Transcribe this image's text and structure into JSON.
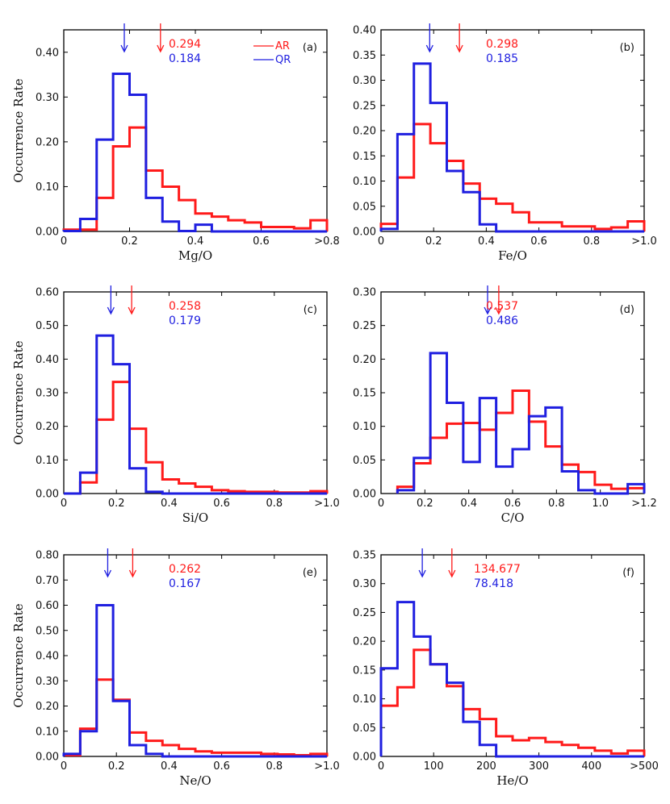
{
  "colors": {
    "AR": "#ff1a1a",
    "QR": "#1f1fe0",
    "axis": "#000000"
  },
  "legend": {
    "AR": "AR",
    "QR": "QR"
  },
  "ylabel": "Occurrence Rate",
  "chart_data": [
    {
      "type": "histogram-step",
      "panel": "(a)",
      "xlabel": "Mg/O",
      "xlim": [
        0,
        0.8
      ],
      "ylim": [
        0,
        0.45
      ],
      "xticks": [
        0,
        0.2,
        0.4,
        0.6,
        0.8
      ],
      "xticklabels": [
        "0",
        "0.2",
        "0.4",
        "0.6",
        ">0.8"
      ],
      "yticks": [
        0,
        0.1,
        0.2,
        0.3,
        0.4
      ],
      "yticklabels": [
        "0.00",
        "0.10",
        "0.20",
        "0.30",
        "0.40"
      ],
      "bin_edges": [
        0,
        0.05,
        0.1,
        0.15,
        0.2,
        0.25,
        0.3,
        0.35,
        0.4,
        0.45,
        0.5,
        0.55,
        0.6,
        0.65,
        0.7,
        0.75,
        0.8
      ],
      "means": {
        "AR": "0.294",
        "QR": "0.184"
      },
      "mean_values": {
        "AR": 0.294,
        "QR": 0.184
      },
      "show_legend": true,
      "series": [
        {
          "name": "AR",
          "values": [
            0.004,
            0.004,
            0.075,
            0.19,
            0.232,
            0.136,
            0.1,
            0.07,
            0.04,
            0.033,
            0.025,
            0.02,
            0.01,
            0.01,
            0.007,
            0.025
          ]
        },
        {
          "name": "QR",
          "values": [
            0.001,
            0.028,
            0.205,
            0.352,
            0.305,
            0.075,
            0.022,
            0.001,
            0.015,
            0.0,
            0.0,
            0.0,
            0.0,
            0.0,
            0.0,
            0.0
          ]
        }
      ]
    },
    {
      "type": "histogram-step",
      "panel": "(b)",
      "xlabel": "Fe/O",
      "xlim": [
        0,
        1.0
      ],
      "ylim": [
        0,
        0.4
      ],
      "xticks": [
        0,
        0.2,
        0.4,
        0.6,
        0.8,
        1.0
      ],
      "xticklabels": [
        "0",
        "0.2",
        "0.4",
        "0.6",
        "0.8",
        ">1.0"
      ],
      "yticks": [
        0,
        0.05,
        0.1,
        0.15,
        0.2,
        0.25,
        0.3,
        0.35,
        0.4
      ],
      "yticklabels": [
        "0.00",
        "0.05",
        "0.10",
        "0.15",
        "0.20",
        "0.25",
        "0.30",
        "0.35",
        "0.40"
      ],
      "bin_edges": [
        0,
        0.0625,
        0.125,
        0.1875,
        0.25,
        0.3125,
        0.375,
        0.4375,
        0.5,
        0.5625,
        0.625,
        0.6875,
        0.75,
        0.8125,
        0.875,
        0.9375,
        1.0
      ],
      "means": {
        "AR": "0.298",
        "QR": "0.185"
      },
      "mean_values": {
        "AR": 0.298,
        "QR": 0.185
      },
      "show_legend": false,
      "series": [
        {
          "name": "AR",
          "values": [
            0.015,
            0.107,
            0.213,
            0.175,
            0.14,
            0.095,
            0.065,
            0.055,
            0.038,
            0.018,
            0.018,
            0.01,
            0.01,
            0.005,
            0.008,
            0.02
          ]
        },
        {
          "name": "QR",
          "values": [
            0.005,
            0.193,
            0.333,
            0.255,
            0.12,
            0.078,
            0.014,
            0.0,
            0.0,
            0.0,
            0.0,
            0.0,
            0.0,
            0.0,
            0.0,
            0.0
          ]
        }
      ]
    },
    {
      "type": "histogram-step",
      "panel": "(c)",
      "xlabel": "Si/O",
      "xlim": [
        0,
        1.0
      ],
      "ylim": [
        0,
        0.6
      ],
      "xticks": [
        0,
        0.2,
        0.4,
        0.6,
        0.8,
        1.0
      ],
      "xticklabels": [
        "0",
        "0.2",
        "0.4",
        "0.6",
        "0.8",
        ">1.0"
      ],
      "yticks": [
        0,
        0.1,
        0.2,
        0.3,
        0.4,
        0.5,
        0.6
      ],
      "yticklabels": [
        "0.00",
        "0.10",
        "0.20",
        "0.30",
        "0.40",
        "0.50",
        "0.60"
      ],
      "bin_edges": [
        0,
        0.0625,
        0.125,
        0.1875,
        0.25,
        0.3125,
        0.375,
        0.4375,
        0.5,
        0.5625,
        0.625,
        0.6875,
        0.75,
        0.8125,
        0.875,
        0.9375,
        1.0
      ],
      "means": {
        "AR": "0.258",
        "QR": "0.179"
      },
      "mean_values": {
        "AR": 0.258,
        "QR": 0.179
      },
      "show_legend": false,
      "series": [
        {
          "name": "AR",
          "values": [
            0.0,
            0.033,
            0.22,
            0.332,
            0.193,
            0.093,
            0.042,
            0.03,
            0.02,
            0.01,
            0.007,
            0.005,
            0.005,
            0.003,
            0.003,
            0.007
          ]
        },
        {
          "name": "QR",
          "values": [
            0.0,
            0.062,
            0.47,
            0.385,
            0.075,
            0.005,
            0.0,
            0.0,
            0.0,
            0.0,
            0.0,
            0.0,
            0.0,
            0.0,
            0.0,
            0.0
          ]
        }
      ]
    },
    {
      "type": "histogram-step",
      "panel": "(d)",
      "xlabel": "C/O",
      "xlim": [
        0,
        1.2
      ],
      "ylim": [
        0,
        0.3
      ],
      "xticks": [
        0,
        0.2,
        0.4,
        0.6,
        0.8,
        1.0,
        1.2
      ],
      "xticklabels": [
        "0",
        "0.2",
        "0.4",
        "0.6",
        "0.8",
        "1.0",
        ">1.2"
      ],
      "yticks": [
        0,
        0.05,
        0.1,
        0.15,
        0.2,
        0.25,
        0.3
      ],
      "yticklabels": [
        "0.00",
        "0.05",
        "0.10",
        "0.15",
        "0.20",
        "0.25",
        "0.30"
      ],
      "bin_edges": [
        0.075,
        0.15,
        0.225,
        0.3,
        0.375,
        0.45,
        0.525,
        0.6,
        0.675,
        0.75,
        0.825,
        0.9,
        0.975,
        1.05,
        1.125,
        1.2
      ],
      "means": {
        "AR": "0.537",
        "QR": "0.486"
      },
      "mean_values": {
        "AR": 0.537,
        "QR": 0.486
      },
      "show_legend": false,
      "series": [
        {
          "name": "AR",
          "values": [
            0.01,
            0.045,
            0.083,
            0.104,
            0.105,
            0.095,
            0.12,
            0.153,
            0.107,
            0.07,
            0.043,
            0.032,
            0.013,
            0.007,
            0.008
          ]
        },
        {
          "name": "QR",
          "values": [
            0.005,
            0.053,
            0.209,
            0.135,
            0.047,
            0.142,
            0.04,
            0.066,
            0.115,
            0.128,
            0.033,
            0.005,
            0.0,
            0.0,
            0.014
          ]
        }
      ]
    },
    {
      "type": "histogram-step",
      "panel": "(e)",
      "xlabel": "Ne/O",
      "xlim": [
        0,
        1.0
      ],
      "ylim": [
        0,
        0.8
      ],
      "xticks": [
        0,
        0.2,
        0.4,
        0.6,
        0.8,
        1.0
      ],
      "xticklabels": [
        "0",
        "0.2",
        "0.4",
        "0.6",
        "0.8",
        ">1.0"
      ],
      "yticks": [
        0,
        0.1,
        0.2,
        0.3,
        0.4,
        0.5,
        0.6,
        0.7,
        0.8
      ],
      "yticklabels": [
        "0.00",
        "0.10",
        "0.20",
        "0.30",
        "0.40",
        "0.50",
        "0.60",
        "0.70",
        "0.80"
      ],
      "bin_edges": [
        0,
        0.0625,
        0.125,
        0.1875,
        0.25,
        0.3125,
        0.375,
        0.4375,
        0.5,
        0.5625,
        0.625,
        0.6875,
        0.75,
        0.8125,
        0.875,
        0.9375,
        1.0
      ],
      "means": {
        "AR": "0.262",
        "QR": "0.167"
      },
      "mean_values": {
        "AR": 0.262,
        "QR": 0.167
      },
      "show_legend": false,
      "series": [
        {
          "name": "AR",
          "values": [
            0.005,
            0.11,
            0.305,
            0.225,
            0.095,
            0.062,
            0.045,
            0.03,
            0.02,
            0.015,
            0.015,
            0.015,
            0.01,
            0.008,
            0.005,
            0.01
          ]
        },
        {
          "name": "QR",
          "values": [
            0.01,
            0.1,
            0.6,
            0.22,
            0.045,
            0.01,
            0.0,
            0.0,
            0.0,
            0.0,
            0.0,
            0.0,
            0.0,
            0.0,
            0.0,
            0.0
          ]
        }
      ]
    },
    {
      "type": "histogram-step",
      "panel": "(f)",
      "xlabel": "He/O",
      "xlim": [
        0,
        500
      ],
      "ylim": [
        0,
        0.35
      ],
      "xticks": [
        0,
        100,
        200,
        300,
        400,
        500
      ],
      "xticklabels": [
        "0",
        "100",
        "200",
        "300",
        "400",
        ">500"
      ],
      "yticks": [
        0,
        0.05,
        0.1,
        0.15,
        0.2,
        0.25,
        0.3,
        0.35
      ],
      "yticklabels": [
        "0.00",
        "0.05",
        "0.10",
        "0.15",
        "0.20",
        "0.25",
        "0.30",
        "0.35"
      ],
      "bin_edges": [
        0,
        31.25,
        62.5,
        93.75,
        125,
        156.25,
        187.5,
        218.75,
        250,
        281.25,
        312.5,
        343.75,
        375,
        406.25,
        437.5,
        468.75,
        500
      ],
      "means": {
        "AR": "134.677",
        "QR": "78.418"
      },
      "mean_values": {
        "AR": 134.677,
        "QR": 78.418
      },
      "show_legend": false,
      "series": [
        {
          "name": "AR",
          "values": [
            0.088,
            0.12,
            0.185,
            0.16,
            0.122,
            0.082,
            0.065,
            0.035,
            0.028,
            0.032,
            0.025,
            0.02,
            0.015,
            0.01,
            0.005,
            0.01
          ]
        },
        {
          "name": "QR",
          "values": [
            0.153,
            0.268,
            0.208,
            0.16,
            0.128,
            0.06,
            0.02,
            0.0,
            0.0,
            0.0,
            0.0,
            0.0,
            0.0,
            0.0,
            0.0,
            0.0
          ]
        }
      ]
    }
  ]
}
